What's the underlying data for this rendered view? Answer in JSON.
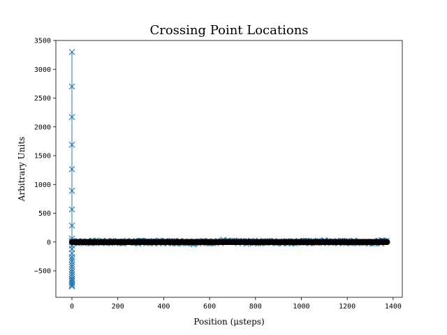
{
  "chart_data": {
    "type": "scatter",
    "title": "Crossing Point Locations",
    "xlabel": "Position (μsteps)",
    "ylabel": "Arbitrary Units",
    "xlim": [
      -70,
      1440
    ],
    "ylim": [
      -960,
      3500
    ],
    "xticks": [
      0,
      200,
      400,
      600,
      800,
      1000,
      1200,
      1400
    ],
    "yticks": [
      -500,
      0,
      500,
      1000,
      1500,
      2000,
      2500,
      3000,
      3500
    ],
    "grid": false,
    "colors": {
      "blue_series": "#1f77b4",
      "black_series": "#000000"
    },
    "series": [
      {
        "marker": "x",
        "color": "#1f77b4",
        "line": true,
        "points": [
          [
            0,
            3300
          ],
          [
            0,
            2700
          ],
          [
            0,
            2170
          ],
          [
            0,
            1690
          ],
          [
            0,
            1265
          ],
          [
            0,
            890
          ],
          [
            0,
            565
          ],
          [
            0,
            285
          ],
          [
            0,
            60
          ],
          [
            0,
            20
          ],
          [
            0,
            -60
          ],
          [
            0,
            -120
          ],
          [
            0,
            -200
          ],
          [
            0,
            -260
          ],
          [
            0,
            -300
          ],
          [
            0,
            -340
          ],
          [
            0,
            -390
          ],
          [
            0,
            -430
          ],
          [
            0,
            -480
          ],
          [
            0,
            -520
          ],
          [
            0,
            -560
          ],
          [
            0,
            -600
          ],
          [
            0,
            -640
          ],
          [
            0,
            -660
          ],
          [
            0,
            -690
          ],
          [
            0,
            -720
          ],
          [
            0,
            -750
          ],
          [
            0,
            -770
          ]
        ]
      },
      {
        "marker": "x",
        "color": "#1f77b4",
        "line": false,
        "x_range": [
          0,
          1375
        ],
        "y_spread": [
          -25,
          25
        ],
        "note_points": [
          [
            290,
            -30
          ],
          [
            530,
            -40
          ],
          [
            660,
            40
          ],
          [
            760,
            -30
          ],
          [
            1100,
            30
          ],
          [
            1350,
            30
          ]
        ]
      },
      {
        "marker": "o",
        "color": "#000000",
        "line": false,
        "x_range": [
          0,
          1375
        ],
        "y_value": 0
      }
    ]
  }
}
